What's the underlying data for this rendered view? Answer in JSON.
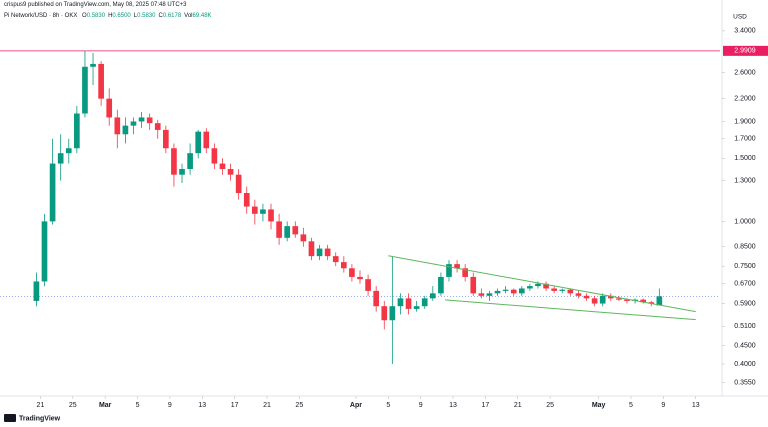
{
  "chart_data": {
    "type": "candlestick",
    "attribution": "crispus9 published on TradingView.com, May 08, 2025 07:48 UTC+3",
    "symbol": "Pi Network/USD · 8h · OKX",
    "ohlc": [
      {
        "key": "O",
        "value": "0.5830"
      },
      {
        "key": "H",
        "value": "0.6500"
      },
      {
        "key": "L",
        "value": "0.5830"
      },
      {
        "key": "C",
        "value": "0.6178"
      },
      {
        "key": "Vol",
        "value": "69.48K"
      }
    ],
    "currency": "USD",
    "logo": "TradingView",
    "log_scale": true,
    "grid": false,
    "up_color": "#089981",
    "down_color": "#f23645",
    "ylim": [
      0.33,
      3.6
    ],
    "yticks": [
      {
        "value": 3.4,
        "label": "3.4000"
      },
      {
        "value": 2.6,
        "label": "2.6000"
      },
      {
        "value": 2.2,
        "label": "2.2000"
      },
      {
        "value": 1.9,
        "label": "1.9000"
      },
      {
        "value": 1.7,
        "label": "1.7000"
      },
      {
        "value": 1.5,
        "label": "1.5000"
      },
      {
        "value": 1.3,
        "label": "1.3000"
      },
      {
        "value": 1.0,
        "label": "1.0000"
      },
      {
        "value": 0.85,
        "label": "0.8500"
      },
      {
        "value": 0.75,
        "label": "0.7500"
      },
      {
        "value": 0.67,
        "label": "0.6700"
      },
      {
        "value": 0.59,
        "label": "0.5900"
      },
      {
        "value": 0.51,
        "label": "0.5100"
      },
      {
        "value": 0.45,
        "label": "0.4500"
      },
      {
        "value": 0.4,
        "label": "0.4000"
      },
      {
        "value": 0.355,
        "label": "0.3550"
      }
    ],
    "xlim": [
      "02-16",
      "05-16"
    ],
    "xticks": [
      {
        "value": "02-21",
        "label": "21"
      },
      {
        "value": "02-25",
        "label": "25"
      },
      {
        "value": "03-01",
        "label": "Mar"
      },
      {
        "value": "03-05",
        "label": "5"
      },
      {
        "value": "03-09",
        "label": "9"
      },
      {
        "value": "03-13",
        "label": "13"
      },
      {
        "value": "03-17",
        "label": "17"
      },
      {
        "value": "03-21",
        "label": "21"
      },
      {
        "value": "03-25",
        "label": "25"
      },
      {
        "value": "04-01",
        "label": "Apr"
      },
      {
        "value": "04-05",
        "label": "5"
      },
      {
        "value": "04-09",
        "label": "9"
      },
      {
        "value": "04-13",
        "label": "13"
      },
      {
        "value": "04-17",
        "label": "17"
      },
      {
        "value": "04-21",
        "label": "21"
      },
      {
        "value": "04-25",
        "label": "25"
      },
      {
        "value": "05-01",
        "label": "May"
      },
      {
        "value": "05-05",
        "label": "5"
      },
      {
        "value": "05-09",
        "label": "9"
      },
      {
        "value": "05-13",
        "label": "13"
      }
    ],
    "price_line": {
      "value": 2.9909,
      "color": "#e91e63"
    },
    "last_price_color": "#2962ff",
    "trendlines": [
      {
        "color": "#5cb85c",
        "x": [
          "04-05",
          "05-13"
        ],
        "y": [
          0.802,
          0.56
        ]
      },
      {
        "color": "#5cb85c",
        "x": [
          "04-12",
          "05-13"
        ],
        "y": [
          0.604,
          0.532
        ]
      }
    ],
    "candles": [
      {
        "x": "02-20",
        "open": 0.6,
        "high": 0.72,
        "low": 0.58,
        "close": 0.68
      },
      {
        "x": "02-21",
        "open": 0.68,
        "high": 1.05,
        "low": 0.66,
        "close": 1.0
      },
      {
        "x": "02-22",
        "open": 1.0,
        "high": 1.7,
        "low": 0.98,
        "close": 1.45
      },
      {
        "x": "02-23",
        "open": 1.45,
        "high": 1.75,
        "low": 1.3,
        "close": 1.55
      },
      {
        "x": "02-24",
        "open": 1.55,
        "high": 1.7,
        "low": 1.45,
        "close": 1.6
      },
      {
        "x": "02-25",
        "open": 1.6,
        "high": 2.1,
        "low": 1.55,
        "close": 2.0
      },
      {
        "x": "02-26",
        "open": 2.0,
        "high": 2.99,
        "low": 1.95,
        "close": 2.7
      },
      {
        "x": "02-27",
        "open": 2.7,
        "high": 2.95,
        "low": 2.4,
        "close": 2.75
      },
      {
        "x": "02-28",
        "open": 2.75,
        "high": 2.8,
        "low": 2.1,
        "close": 2.2
      },
      {
        "x": "03-01",
        "open": 2.2,
        "high": 2.35,
        "low": 1.85,
        "close": 1.95
      },
      {
        "x": "03-02",
        "open": 1.95,
        "high": 2.05,
        "low": 1.6,
        "close": 1.75
      },
      {
        "x": "03-03",
        "open": 1.75,
        "high": 1.95,
        "low": 1.65,
        "close": 1.85
      },
      {
        "x": "03-04",
        "open": 1.85,
        "high": 1.95,
        "low": 1.75,
        "close": 1.9
      },
      {
        "x": "03-05",
        "open": 1.9,
        "high": 2.02,
        "low": 1.82,
        "close": 1.95
      },
      {
        "x": "03-06",
        "open": 1.95,
        "high": 2.0,
        "low": 1.8,
        "close": 1.88
      },
      {
        "x": "03-07",
        "open": 1.88,
        "high": 1.92,
        "low": 1.7,
        "close": 1.8
      },
      {
        "x": "03-08",
        "open": 1.8,
        "high": 1.85,
        "low": 1.55,
        "close": 1.6
      },
      {
        "x": "03-09",
        "open": 1.6,
        "high": 1.65,
        "low": 1.25,
        "close": 1.35
      },
      {
        "x": "03-10",
        "open": 1.35,
        "high": 1.45,
        "low": 1.28,
        "close": 1.4
      },
      {
        "x": "03-11",
        "open": 1.4,
        "high": 1.65,
        "low": 1.35,
        "close": 1.55
      },
      {
        "x": "03-12",
        "open": 1.55,
        "high": 1.8,
        "low": 1.5,
        "close": 1.78
      },
      {
        "x": "03-13",
        "open": 1.78,
        "high": 1.82,
        "low": 1.55,
        "close": 1.6
      },
      {
        "x": "03-14",
        "open": 1.6,
        "high": 1.65,
        "low": 1.4,
        "close": 1.45
      },
      {
        "x": "03-15",
        "open": 1.45,
        "high": 1.5,
        "low": 1.35,
        "close": 1.4
      },
      {
        "x": "03-16",
        "open": 1.4,
        "high": 1.45,
        "low": 1.3,
        "close": 1.35
      },
      {
        "x": "03-17",
        "open": 1.35,
        "high": 1.4,
        "low": 1.15,
        "close": 1.2
      },
      {
        "x": "03-18",
        "open": 1.2,
        "high": 1.25,
        "low": 1.05,
        "close": 1.1
      },
      {
        "x": "03-19",
        "open": 1.1,
        "high": 1.15,
        "low": 0.98,
        "close": 1.05
      },
      {
        "x": "03-20",
        "open": 1.05,
        "high": 1.12,
        "low": 1.0,
        "close": 1.08
      },
      {
        "x": "03-21",
        "open": 1.08,
        "high": 1.12,
        "low": 0.95,
        "close": 1.0
      },
      {
        "x": "03-22",
        "open": 1.0,
        "high": 1.05,
        "low": 0.86,
        "close": 0.9
      },
      {
        "x": "03-23",
        "open": 0.9,
        "high": 1.0,
        "low": 0.88,
        "close": 0.97
      },
      {
        "x": "03-24",
        "open": 0.97,
        "high": 1.0,
        "low": 0.9,
        "close": 0.92
      },
      {
        "x": "03-25",
        "open": 0.92,
        "high": 0.96,
        "low": 0.85,
        "close": 0.88
      },
      {
        "x": "03-26",
        "open": 0.88,
        "high": 0.9,
        "low": 0.78,
        "close": 0.8
      },
      {
        "x": "03-27",
        "open": 0.8,
        "high": 0.86,
        "low": 0.78,
        "close": 0.84
      },
      {
        "x": "03-28",
        "open": 0.84,
        "high": 0.86,
        "low": 0.78,
        "close": 0.8
      },
      {
        "x": "03-29",
        "open": 0.8,
        "high": 0.82,
        "low": 0.75,
        "close": 0.77
      },
      {
        "x": "03-30",
        "open": 0.77,
        "high": 0.8,
        "low": 0.72,
        "close": 0.74
      },
      {
        "x": "03-31",
        "open": 0.74,
        "high": 0.76,
        "low": 0.68,
        "close": 0.7
      },
      {
        "x": "04-01",
        "open": 0.7,
        "high": 0.73,
        "low": 0.67,
        "close": 0.69
      },
      {
        "x": "04-02",
        "open": 0.69,
        "high": 0.71,
        "low": 0.62,
        "close": 0.64
      },
      {
        "x": "04-03",
        "open": 0.64,
        "high": 0.66,
        "low": 0.56,
        "close": 0.58
      },
      {
        "x": "04-04",
        "open": 0.58,
        "high": 0.6,
        "low": 0.5,
        "close": 0.53
      },
      {
        "x": "04-05",
        "open": 0.53,
        "high": 0.8,
        "low": 0.4,
        "close": 0.58
      },
      {
        "x": "04-06",
        "open": 0.58,
        "high": 0.63,
        "low": 0.55,
        "close": 0.61
      },
      {
        "x": "04-07",
        "open": 0.61,
        "high": 0.63,
        "low": 0.55,
        "close": 0.57
      },
      {
        "x": "04-08",
        "open": 0.57,
        "high": 0.6,
        "low": 0.56,
        "close": 0.58
      },
      {
        "x": "04-09",
        "open": 0.58,
        "high": 0.62,
        "low": 0.57,
        "close": 0.61
      },
      {
        "x": "04-10",
        "open": 0.61,
        "high": 0.66,
        "low": 0.6,
        "close": 0.63
      },
      {
        "x": "04-11",
        "open": 0.63,
        "high": 0.72,
        "low": 0.62,
        "close": 0.7
      },
      {
        "x": "04-12",
        "open": 0.7,
        "high": 0.78,
        "low": 0.68,
        "close": 0.76
      },
      {
        "x": "04-13",
        "open": 0.76,
        "high": 0.78,
        "low": 0.72,
        "close": 0.74
      },
      {
        "x": "04-14",
        "open": 0.74,
        "high": 0.76,
        "low": 0.68,
        "close": 0.7
      },
      {
        "x": "04-15",
        "open": 0.7,
        "high": 0.72,
        "low": 0.62,
        "close": 0.63
      },
      {
        "x": "04-16",
        "open": 0.63,
        "high": 0.65,
        "low": 0.61,
        "close": 0.62
      },
      {
        "x": "04-17",
        "open": 0.62,
        "high": 0.64,
        "low": 0.6,
        "close": 0.63
      },
      {
        "x": "04-18",
        "open": 0.63,
        "high": 0.65,
        "low": 0.62,
        "close": 0.64
      },
      {
        "x": "04-19",
        "open": 0.64,
        "high": 0.66,
        "low": 0.63,
        "close": 0.645
      },
      {
        "x": "04-20",
        "open": 0.645,
        "high": 0.65,
        "low": 0.62,
        "close": 0.63
      },
      {
        "x": "04-21",
        "open": 0.63,
        "high": 0.66,
        "low": 0.62,
        "close": 0.65
      },
      {
        "x": "04-22",
        "open": 0.65,
        "high": 0.67,
        "low": 0.64,
        "close": 0.66
      },
      {
        "x": "04-23",
        "open": 0.66,
        "high": 0.68,
        "low": 0.65,
        "close": 0.67
      },
      {
        "x": "04-24",
        "open": 0.67,
        "high": 0.68,
        "low": 0.64,
        "close": 0.65
      },
      {
        "x": "04-25",
        "open": 0.65,
        "high": 0.66,
        "low": 0.63,
        "close": 0.64
      },
      {
        "x": "04-26",
        "open": 0.64,
        "high": 0.65,
        "low": 0.63,
        "close": 0.645
      },
      {
        "x": "04-27",
        "open": 0.645,
        "high": 0.65,
        "low": 0.62,
        "close": 0.63
      },
      {
        "x": "04-28",
        "open": 0.63,
        "high": 0.64,
        "low": 0.61,
        "close": 0.62
      },
      {
        "x": "04-29",
        "open": 0.62,
        "high": 0.63,
        "low": 0.6,
        "close": 0.61
      },
      {
        "x": "04-30",
        "open": 0.61,
        "high": 0.62,
        "low": 0.58,
        "close": 0.59
      },
      {
        "x": "05-01",
        "open": 0.59,
        "high": 0.63,
        "low": 0.58,
        "close": 0.62
      },
      {
        "x": "05-02",
        "open": 0.62,
        "high": 0.63,
        "low": 0.6,
        "close": 0.61
      },
      {
        "x": "05-03",
        "open": 0.61,
        "high": 0.62,
        "low": 0.6,
        "close": 0.605
      },
      {
        "x": "05-04",
        "open": 0.605,
        "high": 0.61,
        "low": 0.59,
        "close": 0.6
      },
      {
        "x": "05-05",
        "open": 0.6,
        "high": 0.61,
        "low": 0.59,
        "close": 0.605
      },
      {
        "x": "05-06",
        "open": 0.605,
        "high": 0.61,
        "low": 0.59,
        "close": 0.595
      },
      {
        "x": "05-07",
        "open": 0.595,
        "high": 0.6,
        "low": 0.58,
        "close": 0.59
      },
      {
        "x": "05-08",
        "open": 0.583,
        "high": 0.65,
        "low": 0.583,
        "close": 0.6178
      }
    ]
  }
}
